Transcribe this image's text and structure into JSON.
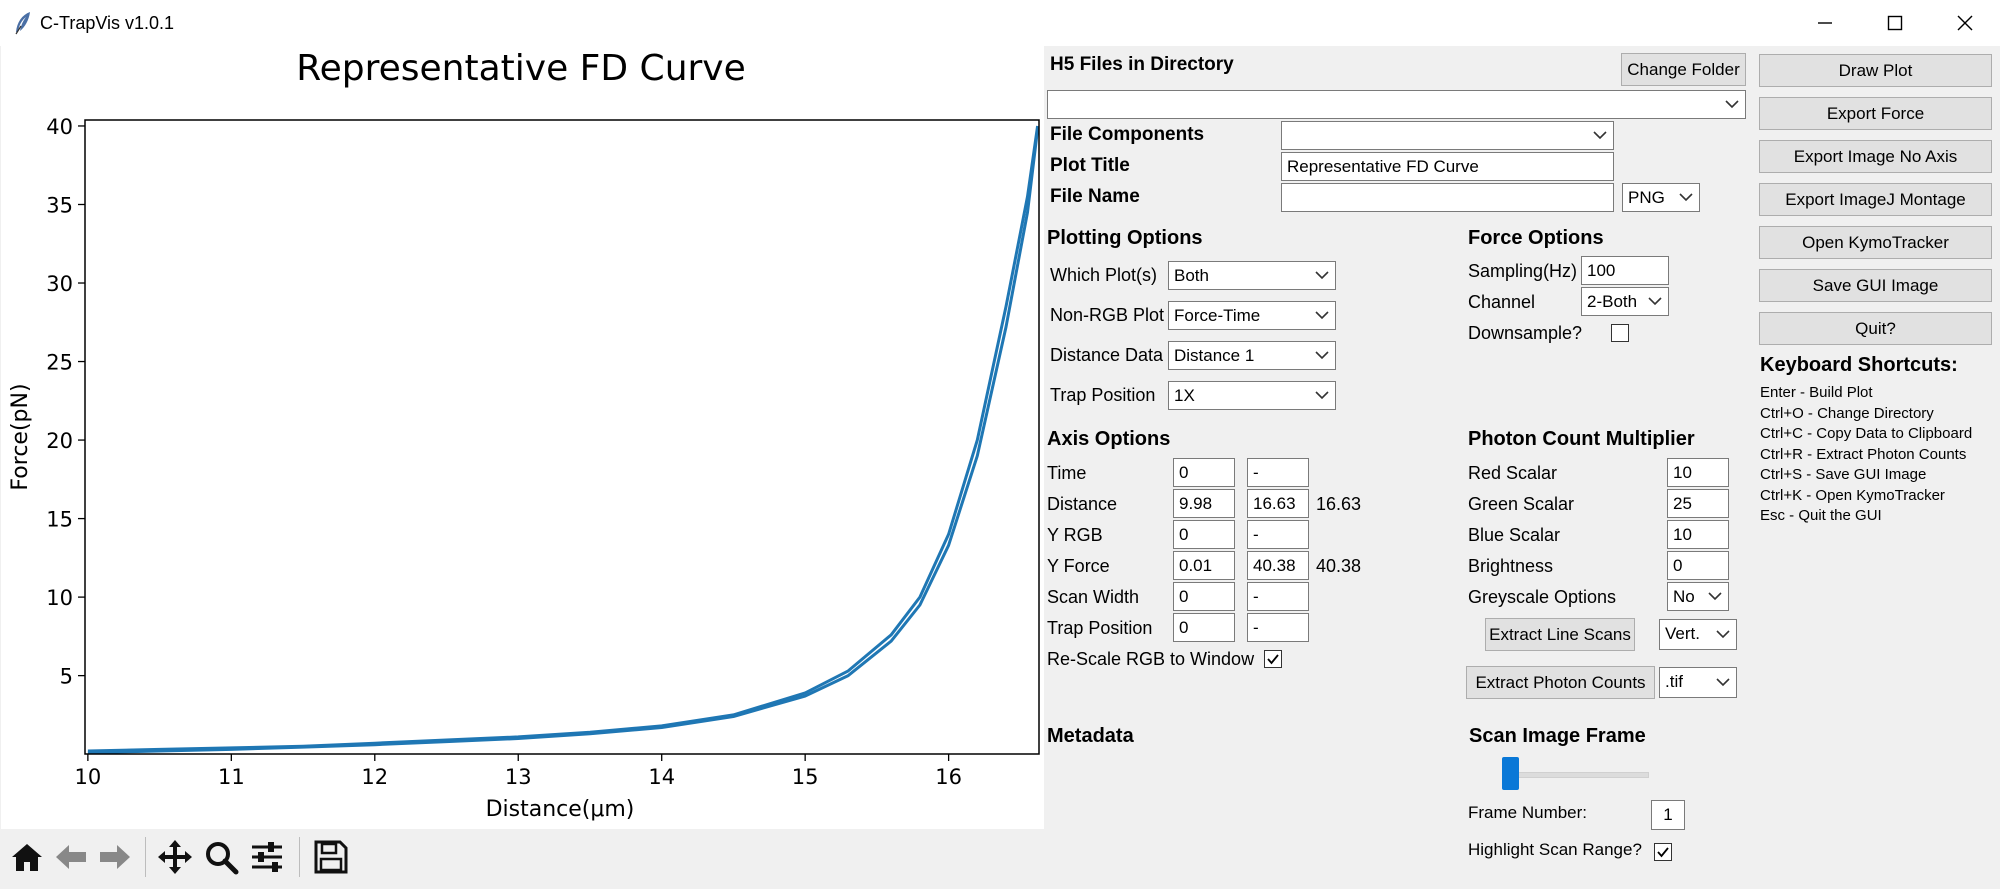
{
  "window": {
    "title": "C-TrapVis v1.0.1"
  },
  "plot": {
    "toolbar": [
      "home-icon",
      "back-arrow-icon",
      "forward-arrow-icon",
      "pan-icon",
      "zoom-icon",
      "configure-icon",
      "save-icon"
    ]
  },
  "chart_data": {
    "type": "line",
    "title": "Representative FD Curve",
    "xlabel": "Distance(μm)",
    "ylabel": "Force(pN)",
    "xlim": [
      9.98,
      16.63
    ],
    "ylim": [
      0.01,
      40.38
    ],
    "xticks": [
      "10",
      "11",
      "12",
      "13",
      "14",
      "15",
      "16"
    ],
    "yticks": [
      "5",
      "10",
      "15",
      "20",
      "25",
      "30",
      "35",
      "40"
    ],
    "grid": false,
    "color": "#1f77b4",
    "series": [
      {
        "x": [
          10.0,
          10.5,
          11.0,
          11.5,
          12.0,
          12.5,
          13.0,
          13.5,
          14.0,
          14.5,
          15.0,
          15.3,
          15.6,
          15.8,
          16.0,
          16.2,
          16.4,
          16.55,
          16.62
        ],
        "y": [
          0.2,
          0.3,
          0.4,
          0.5,
          0.7,
          0.9,
          1.1,
          1.4,
          1.8,
          2.5,
          3.9,
          5.3,
          7.6,
          10.0,
          14.0,
          20.0,
          28.5,
          35.5,
          40.0
        ]
      },
      {
        "x": [
          10.0,
          10.5,
          11.0,
          11.5,
          12.0,
          12.5,
          13.0,
          13.5,
          14.0,
          14.5,
          15.0,
          15.3,
          15.6,
          15.8,
          16.0,
          16.2,
          16.4,
          16.55,
          16.62
        ],
        "y": [
          0.1,
          0.2,
          0.3,
          0.45,
          0.6,
          0.8,
          1.0,
          1.3,
          1.7,
          2.4,
          3.7,
          5.0,
          7.2,
          9.5,
          13.3,
          19.0,
          27.2,
          34.5,
          39.8
        ]
      }
    ]
  },
  "files": {
    "header": "H5 Files in Directory",
    "change_folder": "Change Folder",
    "selected_file": ""
  },
  "fields": {
    "file_components_label": "File Components",
    "file_components_value": "",
    "plot_title_label": "Plot Title",
    "plot_title_value": "Representative FD Curve",
    "file_name_label": "File Name",
    "file_name_value": "",
    "file_format": "PNG"
  },
  "plotting": {
    "header": "Plotting Options",
    "which_label": "Which Plot(s)",
    "which_value": "Both",
    "nonrgb_label": "Non-RGB Plot",
    "nonrgb_value": "Force-Time",
    "distance_label": "Distance Data",
    "distance_value": "Distance 1",
    "trap_label": "Trap Position",
    "trap_value": "1X"
  },
  "force": {
    "header": "Force Options",
    "sampling_label": "Sampling(Hz)",
    "sampling_value": "100",
    "channel_label": "Channel",
    "channel_value": "2-Both",
    "downsample_label": "Downsample?",
    "downsample_checked": false
  },
  "axis": {
    "header": "Axis Options",
    "rows": [
      {
        "label": "Time",
        "min": "0",
        "max": "-",
        "extra": ""
      },
      {
        "label": "Distance",
        "min": "9.98",
        "max": "16.63",
        "extra": "16.63"
      },
      {
        "label": "Y RGB",
        "min": "0",
        "max": "-",
        "extra": ""
      },
      {
        "label": "Y Force",
        "min": "0.01",
        "max": "40.38",
        "extra": "40.38"
      },
      {
        "label": "Scan Width",
        "min": "0",
        "max": "-",
        "extra": ""
      },
      {
        "label": "Trap Position",
        "min": "0",
        "max": "-",
        "extra": ""
      }
    ],
    "rescale_label": "Re-Scale RGB to Window",
    "rescale_checked": true
  },
  "photon": {
    "header": "Photon Count Multiplier",
    "red_label": "Red Scalar",
    "red_value": "10",
    "green_label": "Green Scalar",
    "green_value": "25",
    "blue_label": "Blue Scalar",
    "blue_value": "10",
    "brightness_label": "Brightness",
    "brightness_value": "0",
    "greyscale_label": "Greyscale Options",
    "greyscale_value": "No",
    "extract_line_scans": "Extract Line Scans",
    "line_scan_dir": "Vert.",
    "extract_photon_counts": "Extract Photon Counts",
    "photon_format": ".tif"
  },
  "metadata": {
    "header": "Metadata"
  },
  "scan": {
    "header": "Scan Image Frame",
    "slider_value": 1,
    "frame_label": "Frame Number:",
    "frame_value": "1",
    "highlight_label": "Highlight Scan Range?",
    "highlight_checked": true
  },
  "actions": {
    "draw_plot": "Draw Plot",
    "export_force": "Export Force",
    "export_no_axis": "Export Image No Axis",
    "export_montage": "Export ImageJ Montage",
    "open_kymo": "Open KymoTracker",
    "save_gui": "Save GUI Image",
    "quit": "Quit?"
  },
  "shortcuts": {
    "header": "Keyboard Shortcuts:",
    "items": [
      "Enter - Build Plot",
      "Ctrl+O - Change Directory",
      "Ctrl+C - Copy Data to Clipboard",
      "Ctrl+R - Extract Photon Counts",
      "Ctrl+S - Save GUI Image",
      "Ctrl+K - Open KymoTracker",
      "Esc - Quit the GUI"
    ]
  }
}
